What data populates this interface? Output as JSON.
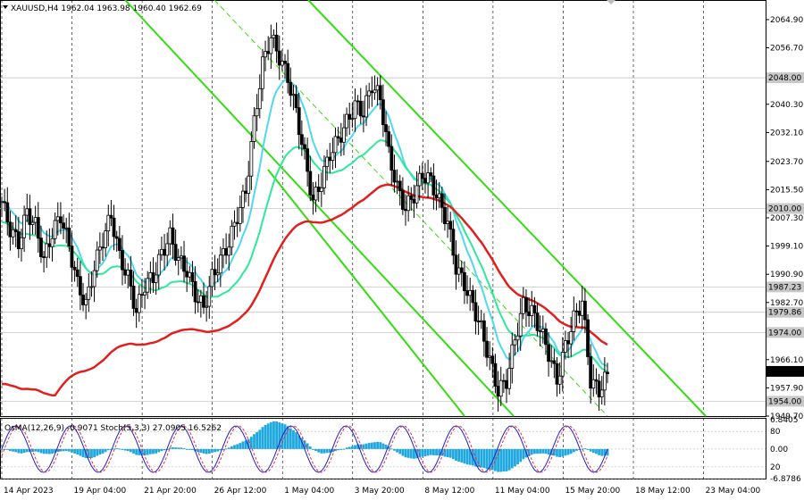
{
  "header": {
    "symbol_line": "XAUUSD,H4  1962.04 1963.98 1960.40 1962.69"
  },
  "indicator_header": {
    "text": "OsMA(12,26,9) -0.9071  Stoch(5,3,3) 27.0905 16.5262"
  },
  "colors": {
    "candle": "#000000",
    "ema_fast": "#4fd8f0",
    "ema_mid": "#2ee89a",
    "ema_slow": "#e0201e",
    "channel": "#33dd11",
    "level_box": "#c8c8c8",
    "osma": "#1ea8e0",
    "stoch_main": "#2020c0",
    "stoch_signal": "#e03050"
  },
  "chart_data": {
    "type": "candlestick",
    "price_range": [
      1949.7,
      2068.0
    ],
    "y_ticks": [
      "2064.90",
      "2056.70",
      "2040.30",
      "2032.10",
      "2023.70",
      "2015.50",
      "2007.30",
      "1999.10",
      "1990.90",
      "1982.70",
      "1966.10",
      "1957.90",
      "1949.70"
    ],
    "level_labels": [
      "2048.00",
      "2010.00",
      "1987.23",
      "1979.86",
      "1974.00",
      "1954.00"
    ],
    "current_price": "1962.69",
    "x_labels": [
      "14 Apr 2023",
      "19 Apr 04:00",
      "21 Apr 20:00",
      "26 Apr 12:00",
      "1 May 04:00",
      "3 May 20:00",
      "8 May 12:00",
      "11 May 04:00",
      "15 May 20:00",
      "18 May 12:00",
      "23 May 04:00"
    ],
    "indicator_ticks": [
      "6.8405",
      "80",
      "0.00",
      "20",
      "-6.8786"
    ],
    "indicator_range": [
      -6.8786,
      6.8405
    ],
    "close_path": [
      2012,
      2004,
      2000,
      2009,
      2005,
      1995,
      2003,
      2008,
      1999,
      1988,
      1982,
      1993,
      2001,
      2008,
      1996,
      1990,
      1980,
      1988,
      1990,
      1997,
      2002,
      1995,
      1992,
      1985,
      1981,
      1990,
      1995,
      2000,
      2008,
      2015,
      2035,
      2052,
      2060,
      2054,
      2048,
      2038,
      2025,
      2012,
      2018,
      2026,
      2030,
      2035,
      2040,
      2038,
      2046,
      2042,
      2026,
      2016,
      2010,
      2014,
      2020,
      2018,
      2012,
      2006,
      1993,
      1988,
      1982,
      1975,
      1966,
      1957,
      1960,
      1972,
      1982,
      1980,
      1975,
      1968,
      1960,
      1970,
      1978,
      1983,
      1960,
      1957,
      1962
    ]
  }
}
